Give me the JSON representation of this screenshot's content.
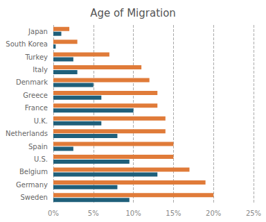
{
  "chart_data": {
    "type": "bar",
    "title": "Age of Migration",
    "orientation": "horizontal",
    "categories": [
      "Japan",
      "South Korea",
      "Turkey",
      "Italy",
      "Denmark",
      "Greece",
      "France",
      "U.K.",
      "Netherlands",
      "Spain",
      "U.S.",
      "Belgium",
      "Germany",
      "Sweden"
    ],
    "series": [
      {
        "color": "#e07b39",
        "values": [
          2.0,
          3.0,
          7.0,
          11.0,
          12.0,
          13.0,
          13.0,
          14.0,
          14.0,
          15.0,
          15.0,
          17.0,
          19.0,
          20.0
        ]
      },
      {
        "color": "#1f5f7a",
        "values": [
          1.0,
          0.3,
          2.5,
          3.0,
          5.0,
          6.0,
          10.0,
          6.0,
          8.0,
          2.5,
          9.5,
          13.0,
          8.0,
          9.5
        ]
      }
    ],
    "xlim": [
      0,
      25
    ],
    "xticks": [
      {
        "value": 0,
        "label": "0%"
      },
      {
        "value": 5,
        "label": "5%"
      },
      {
        "value": 10,
        "label": "10%"
      },
      {
        "value": 15,
        "label": "15%"
      },
      {
        "value": 20,
        "label": "20%"
      },
      {
        "value": 25,
        "label": "25%"
      }
    ],
    "grid": true
  }
}
